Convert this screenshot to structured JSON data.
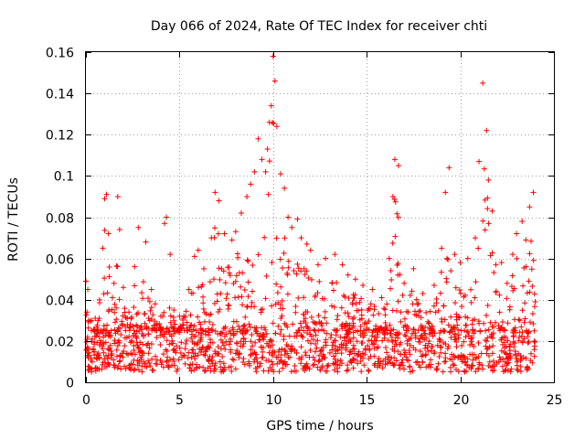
{
  "chart_data": {
    "type": "scatter",
    "title": "Day 066 of 2024, Rate Of TEC Index for receiver chti",
    "xlabel": "GPS time / hours",
    "ylabel": "ROTI / TECUs",
    "xlim": [
      0,
      25
    ],
    "ylim": [
      0,
      0.16
    ],
    "xticks": [
      0,
      5,
      10,
      15,
      20,
      25
    ],
    "xtick_labels": [
      "0",
      "5",
      "10",
      "15",
      "20",
      "25"
    ],
    "yticks": [
      0,
      0.02,
      0.04,
      0.06,
      0.08,
      0.1,
      0.12,
      0.14,
      0.16
    ],
    "ytick_labels": [
      "0",
      "0.02",
      "0.04",
      "0.06",
      "0.08",
      "0.1",
      "0.12",
      "0.14",
      "0.16"
    ],
    "grid": true,
    "marker": "+",
    "color": "#ff0000",
    "x_data_range": [
      0,
      24
    ],
    "series": [
      {
        "name": "ROTI",
        "x": [
          0.0,
          0.1,
          0.3,
          0.5,
          0.9,
          1.0,
          1.1,
          1.2,
          1.5,
          1.7,
          1.8,
          2.0,
          2.3,
          2.6,
          2.8,
          3.2,
          3.5,
          3.7,
          4.0,
          4.2,
          4.3,
          4.5,
          4.7,
          5.0,
          5.5,
          5.8,
          6.0,
          6.3,
          6.7,
          6.9,
          7.1,
          7.4,
          7.8,
          8.0,
          8.3,
          8.6,
          8.8,
          9.0,
          9.2,
          9.4,
          9.6,
          9.7,
          9.8,
          9.9,
          10.0,
          10.1,
          10.2,
          10.4,
          10.6,
          10.8,
          11.0,
          11.3,
          11.5,
          11.8,
          12.0,
          12.4,
          12.8,
          13.3,
          13.7,
          14.0,
          14.4,
          14.8,
          15.3,
          15.8,
          16.2,
          16.4,
          16.5,
          16.7,
          17.0,
          17.5,
          18.0,
          18.6,
          19.0,
          19.2,
          19.4,
          19.7,
          20.0,
          20.4,
          20.8,
          21.0,
          21.2,
          21.4,
          21.5,
          21.7,
          21.9,
          22.2,
          22.5,
          22.8,
          23.0,
          23.3,
          23.5,
          23.7,
          23.9,
          24.0
        ],
        "y": [
          0.049,
          0.045,
          0.03,
          0.031,
          0.065,
          0.089,
          0.091,
          0.072,
          0.048,
          0.09,
          0.074,
          0.046,
          0.034,
          0.056,
          0.075,
          0.068,
          0.045,
          0.038,
          0.032,
          0.077,
          0.08,
          0.062,
          0.035,
          0.032,
          0.045,
          0.061,
          0.064,
          0.055,
          0.07,
          0.092,
          0.088,
          0.072,
          0.069,
          0.073,
          0.082,
          0.09,
          0.096,
          0.102,
          0.118,
          0.108,
          0.102,
          0.113,
          0.126,
          0.134,
          0.158,
          0.146,
          0.124,
          0.101,
          0.094,
          0.08,
          0.075,
          0.079,
          0.07,
          0.067,
          0.064,
          0.057,
          0.06,
          0.062,
          0.057,
          0.052,
          0.05,
          0.047,
          0.045,
          0.041,
          0.06,
          0.09,
          0.108,
          0.105,
          0.048,
          0.055,
          0.043,
          0.047,
          0.065,
          0.092,
          0.104,
          0.062,
          0.058,
          0.06,
          0.07,
          0.107,
          0.145,
          0.122,
          0.098,
          0.083,
          0.057,
          0.058,
          0.048,
          0.062,
          0.072,
          0.078,
          0.069,
          0.085,
          0.092,
          0.039
        ],
        "baseline_band": [
          0.005,
          0.025
        ]
      }
    ]
  }
}
